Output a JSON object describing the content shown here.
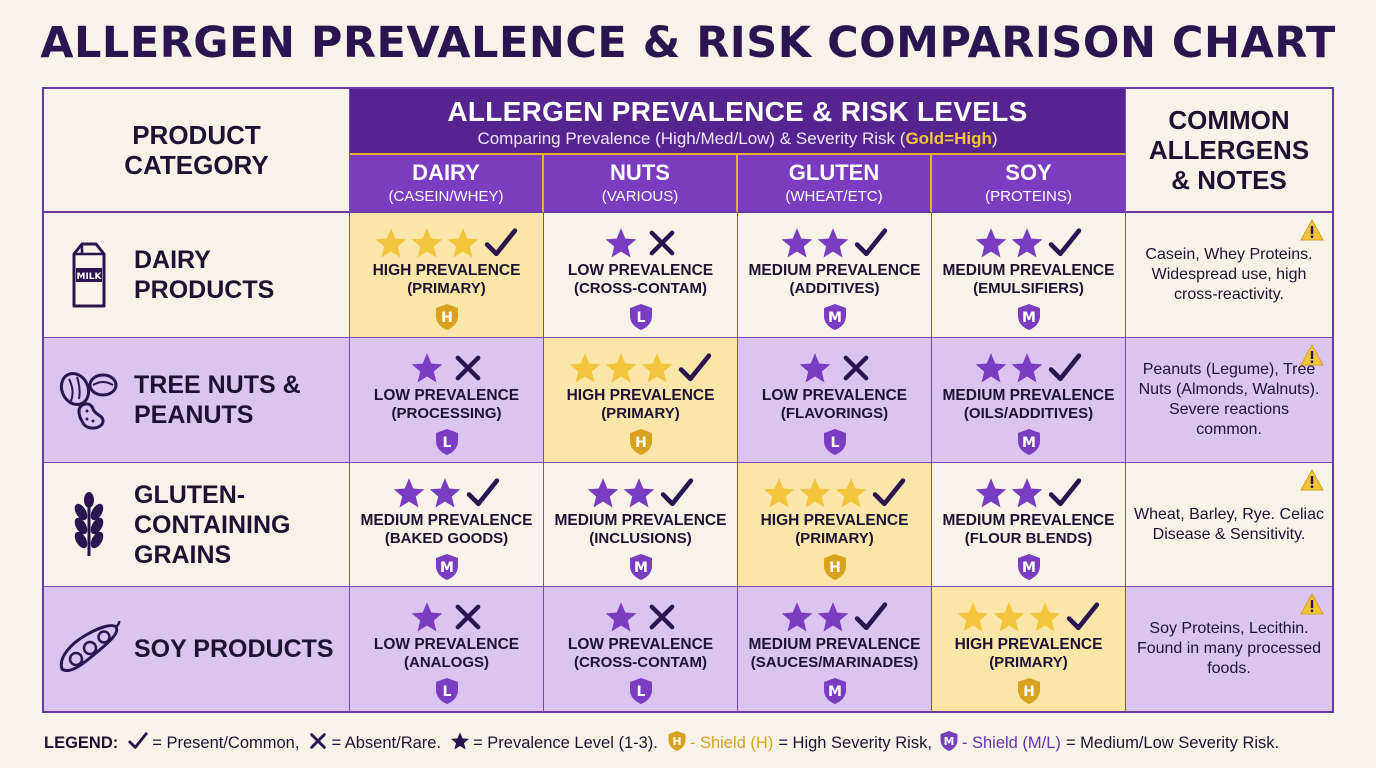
{
  "title": "ALLERGEN PREVALENCE & RISK COMPARISON CHART",
  "header": {
    "category_label": "PRODUCT CATEGORY",
    "main_title": "ALLERGEN PREVALENCE & RISK LEVELS",
    "subtitle_prefix": "Comparing Prevalence (High/Med/Low) & Severity Risk (",
    "subtitle_gold": "Gold=High",
    "subtitle_suffix": ")",
    "notes_label": "COMMON ALLERGENS & NOTES",
    "columns": [
      {
        "name": "DAIRY",
        "sub": "(CASEIN/WHEY)"
      },
      {
        "name": "NUTS",
        "sub": "(VARIOUS)"
      },
      {
        "name": "GLUTEN",
        "sub": "(WHEAT/ETC)"
      },
      {
        "name": "SOY",
        "sub": "(PROTEINS)"
      }
    ]
  },
  "colors": {
    "purple": "#55248f",
    "gold": "#f2c53d",
    "high_bg": "#fae6a8",
    "row_alt": "#dcc4f0"
  },
  "rows": [
    {
      "name": "DAIRY PRODUCTS",
      "icon": "milk-carton-icon",
      "icon_text": "MILK",
      "note": "Casein, Whey Proteins. Widespread use, high cross-reactivity.",
      "cells": [
        {
          "stars": 3,
          "present": true,
          "level": "HIGH PREVALENCE",
          "source": "(PRIMARY)",
          "risk": "H"
        },
        {
          "stars": 1,
          "present": false,
          "level": "LOW PREVALENCE",
          "source": "(CROSS-CONTAM)",
          "risk": "L"
        },
        {
          "stars": 2,
          "present": true,
          "level": "MEDIUM PREVALENCE",
          "source": "(ADDITIVES)",
          "risk": "M"
        },
        {
          "stars": 2,
          "present": true,
          "level": "MEDIUM PREVALENCE",
          "source": "(EMULSIFIERS)",
          "risk": "M"
        }
      ]
    },
    {
      "name": "TREE NUTS & PEANUTS",
      "icon": "nuts-icon",
      "note": "Peanuts (Legume), Tree Nuts (Almonds, Walnuts). Severe reactions common.",
      "cells": [
        {
          "stars": 1,
          "present": false,
          "level": "LOW PREVALENCE",
          "source": "(PROCESSING)",
          "risk": "L"
        },
        {
          "stars": 3,
          "present": true,
          "level": "HIGH PREVALENCE",
          "source": "(PRIMARY)",
          "risk": "H"
        },
        {
          "stars": 1,
          "present": false,
          "level": "LOW PREVALENCE",
          "source": "(FLAVORINGS)",
          "risk": "L"
        },
        {
          "stars": 2,
          "present": true,
          "level": "MEDIUM PREVALENCE",
          "source": "(OILS/ADDITIVES)",
          "risk": "M"
        }
      ]
    },
    {
      "name": "GLUTEN-CONTAINING GRAINS",
      "icon": "wheat-icon",
      "note": "Wheat, Barley, Rye. Celiac Disease & Sensitivity.",
      "cells": [
        {
          "stars": 2,
          "present": true,
          "level": "MEDIUM PREVALENCE",
          "source": "(BAKED GOODS)",
          "risk": "M"
        },
        {
          "stars": 2,
          "present": true,
          "level": "MEDIUM PREVALENCE",
          "source": "(INCLUSIONS)",
          "risk": "M"
        },
        {
          "stars": 3,
          "present": true,
          "level": "HIGH PREVALENCE",
          "source": "(PRIMARY)",
          "risk": "H"
        },
        {
          "stars": 2,
          "present": true,
          "level": "MEDIUM PREVALENCE",
          "source": "(FLOUR BLENDS)",
          "risk": "M"
        }
      ]
    },
    {
      "name": "SOY PRODUCTS",
      "icon": "soybean-pod-icon",
      "note": "Soy Proteins, Lecithin. Found in many processed foods.",
      "cells": [
        {
          "stars": 1,
          "present": false,
          "level": "LOW PREVALENCE",
          "source": "(ANALOGS)",
          "risk": "L"
        },
        {
          "stars": 1,
          "present": false,
          "level": "LOW PREVALENCE",
          "source": "(CROSS-CONTAM)",
          "risk": "L"
        },
        {
          "stars": 2,
          "present": true,
          "level": "MEDIUM PREVALENCE",
          "source": "(SAUCES/MARINADES)",
          "risk": "M"
        },
        {
          "stars": 3,
          "present": true,
          "level": "HIGH PREVALENCE",
          "source": "(PRIMARY)",
          "risk": "H"
        }
      ]
    }
  ],
  "legend": {
    "label": "LEGEND:",
    "check_text": "= Present/Common,",
    "cross_text": "= Absent/Rare.",
    "star_text": "= Prevalence Level (1-3).",
    "high_shield_letter": "H",
    "high_shield_label": "- Shield (H)",
    "high_shield_text": "= High Severity Risk,",
    "med_shield_letter": "M",
    "med_shield_label": "- Shield (M/L)",
    "med_shield_text": "= Medium/Low Severity Risk."
  }
}
